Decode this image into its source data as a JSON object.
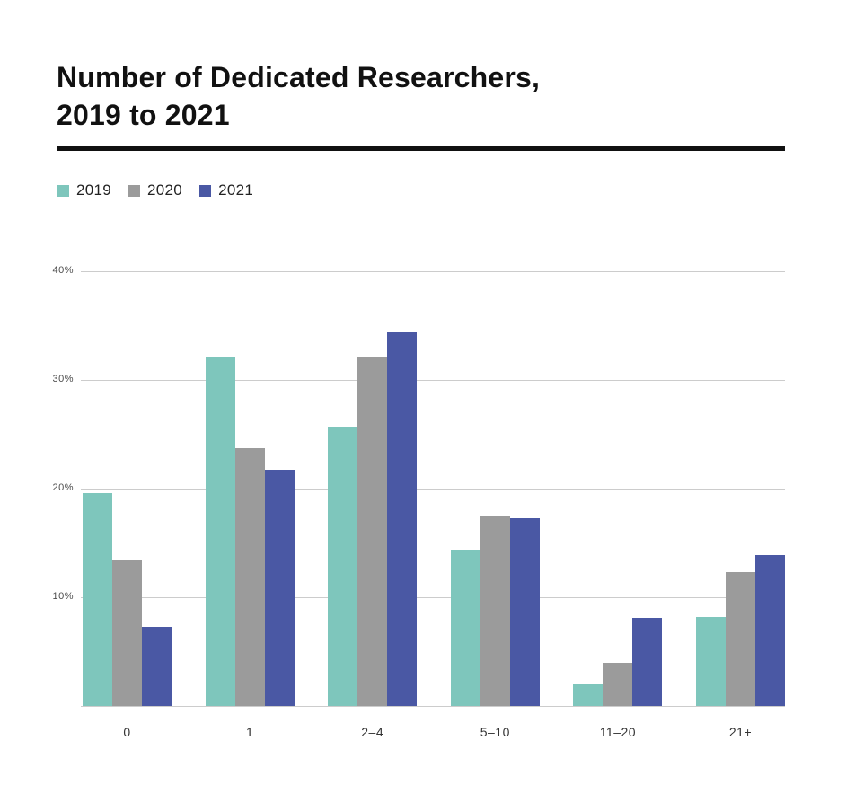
{
  "title": {
    "line1": "Number of Dedicated Researchers,",
    "line2": "2019 to 2021"
  },
  "chart_data": {
    "type": "bar",
    "title": "Number of Dedicated Researchers, 2019 to 2021",
    "categories": [
      "0",
      "1",
      "2–4",
      "5–10",
      "11–20",
      "21+"
    ],
    "series": [
      {
        "name": "2019",
        "color": "#7ec6bc",
        "values": [
          19.6,
          32.1,
          25.7,
          14.4,
          2.0,
          8.2
        ]
      },
      {
        "name": "2020",
        "color": "#9b9b9b",
        "values": [
          13.4,
          23.7,
          32.1,
          17.4,
          4.0,
          12.3
        ]
      },
      {
        "name": "2021",
        "color": "#4a58a4",
        "values": [
          7.3,
          21.7,
          34.4,
          17.3,
          8.1,
          13.9
        ]
      }
    ],
    "yticks": [
      {
        "value": 10,
        "label": "10%"
      },
      {
        "value": 20,
        "label": "20%"
      },
      {
        "value": 30,
        "label": "30%"
      },
      {
        "value": 40,
        "label": "40%"
      }
    ],
    "ylim": [
      0,
      40.5
    ],
    "xlabel": "",
    "ylabel": "",
    "grid": true,
    "legend_position": "top-left",
    "colors": {
      "grid": "#cccccc",
      "axis_text": "#4d4d4d",
      "title_text": "#111111",
      "divider": "#111111"
    }
  }
}
